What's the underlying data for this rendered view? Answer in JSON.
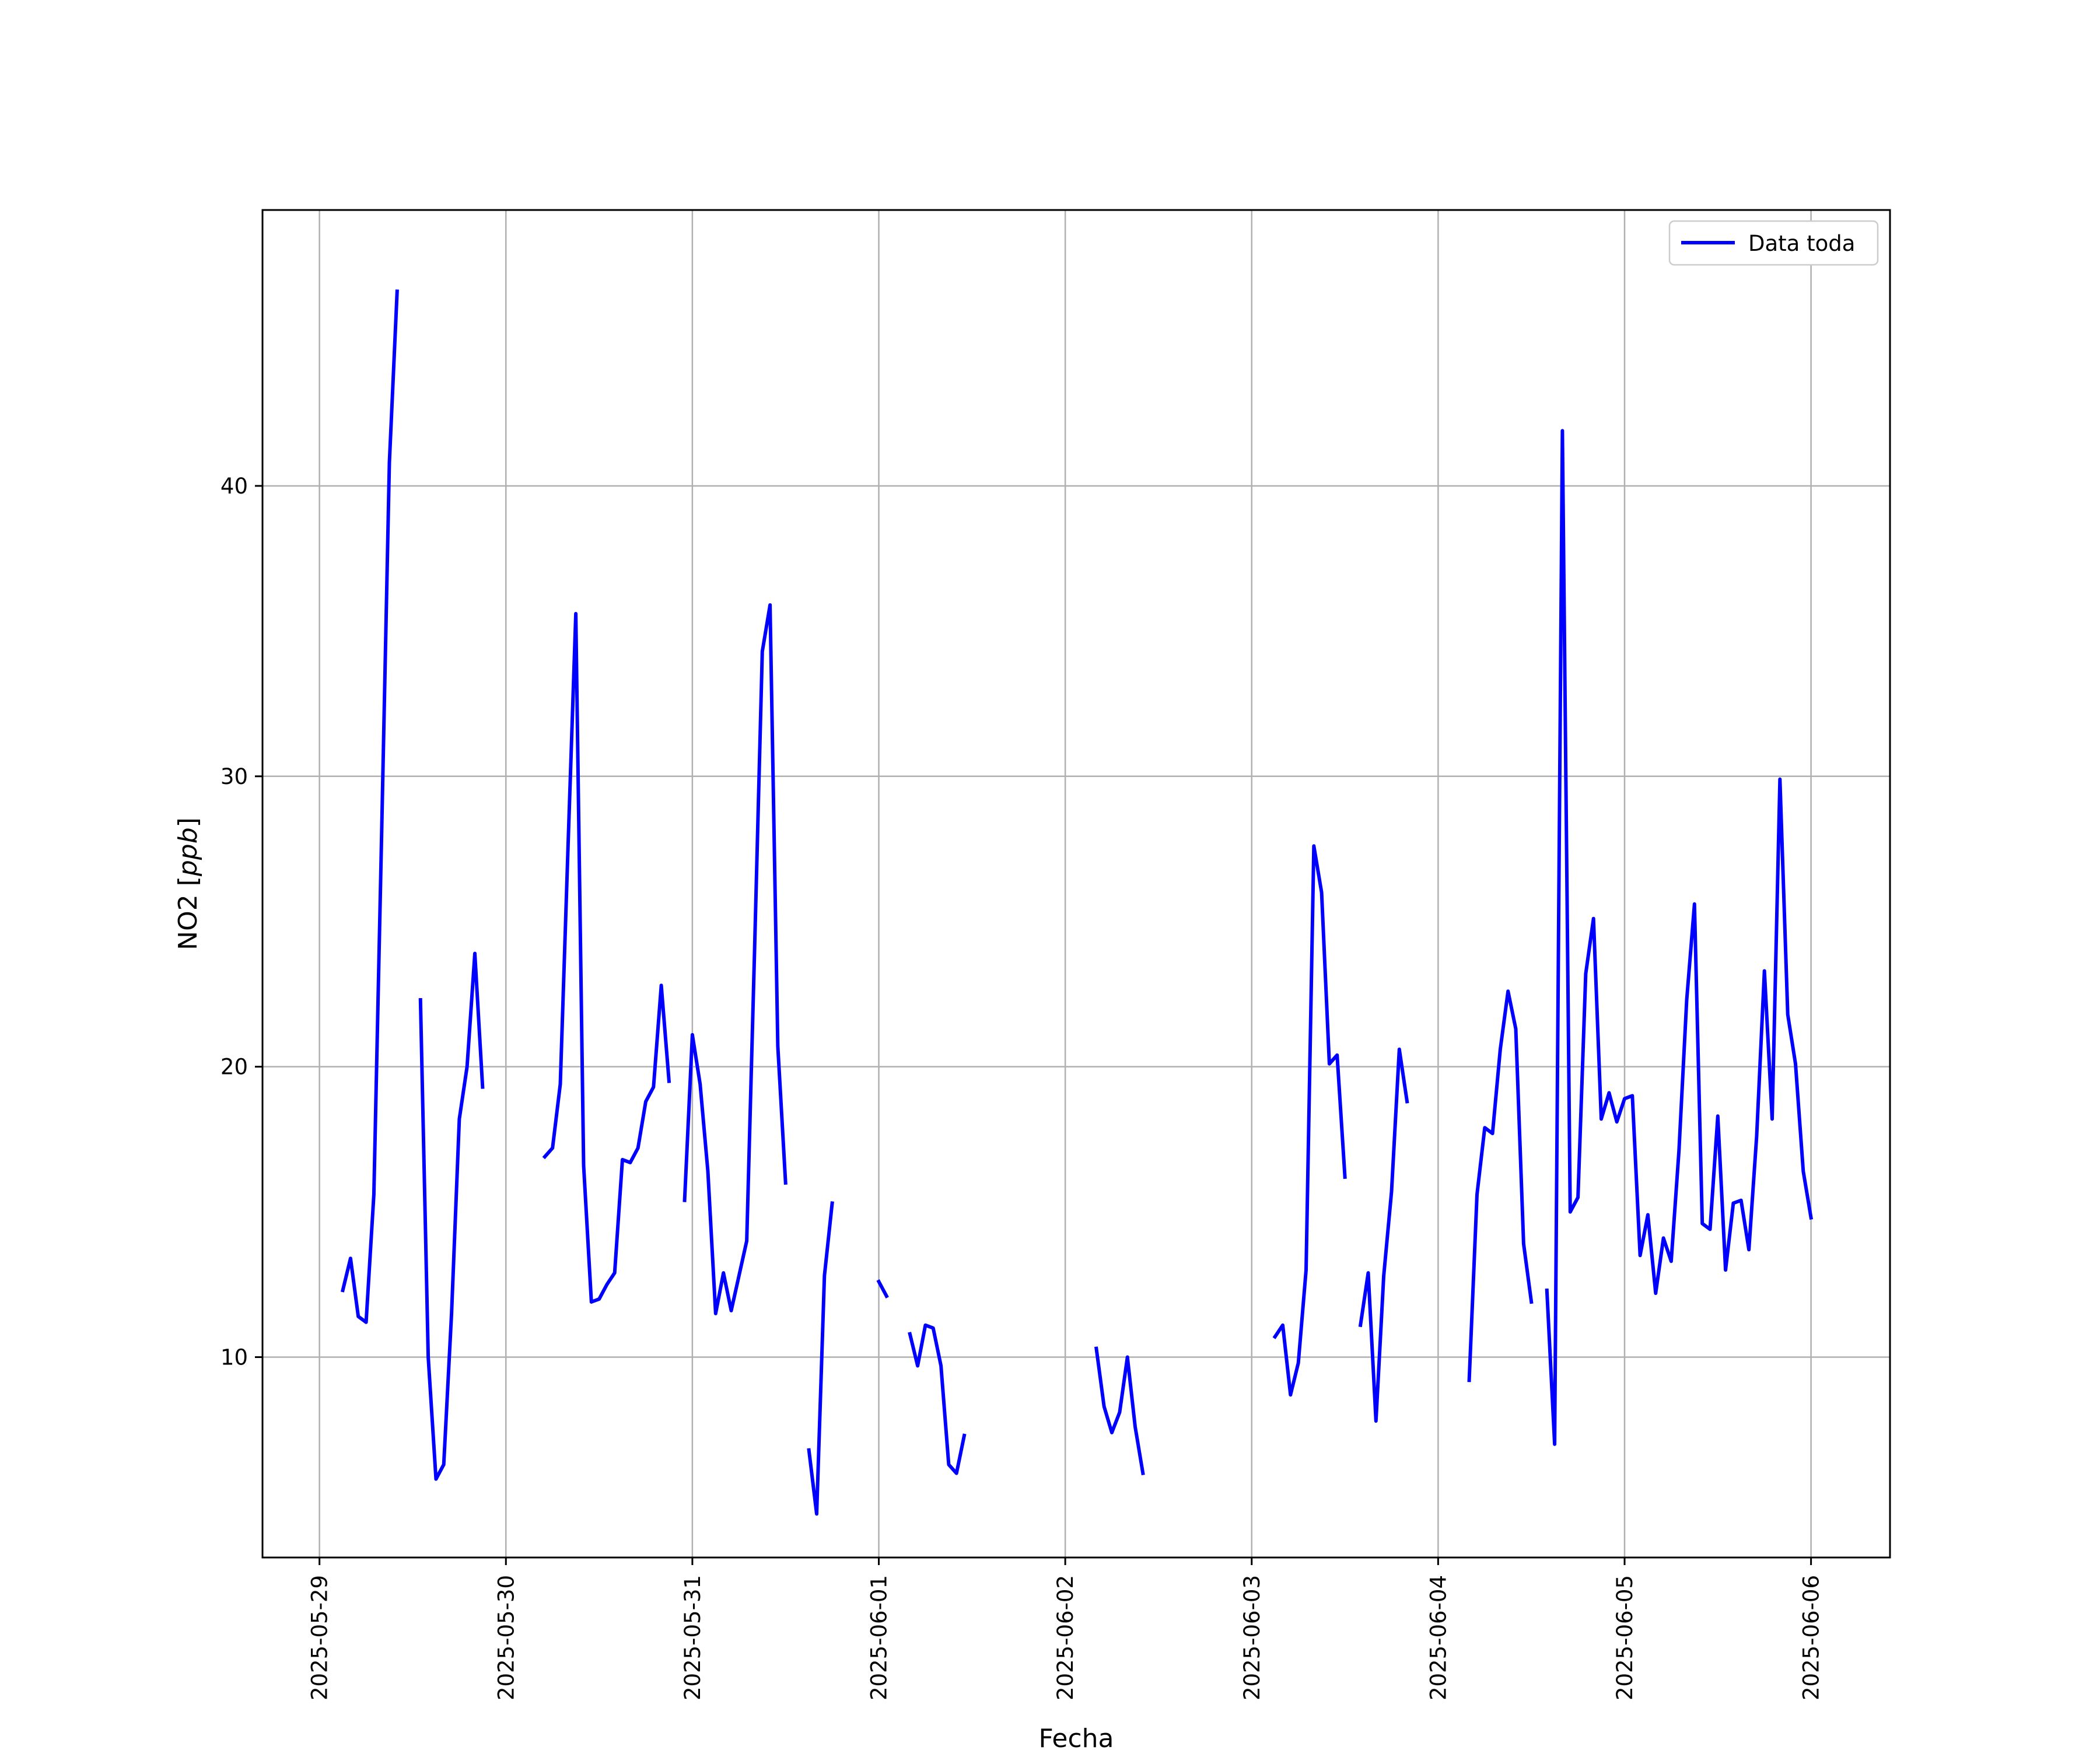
{
  "chart_data": {
    "type": "line",
    "title": "",
    "xlabel": "Fecha",
    "ylabel_main": "NO2 [",
    "ylabel_unit": "ppb",
    "ylabel_close": "]",
    "x_ticks": [
      "2025-05-29",
      "2025-05-30",
      "2025-05-31",
      "2025-06-01",
      "2025-06-02",
      "2025-06-03",
      "2025-06-04",
      "2025-06-05",
      "2025-06-06"
    ],
    "y_ticks": [
      10,
      20,
      30,
      40
    ],
    "xlim": [
      "2025-05-28T16:40",
      "2025-06-06T10:10"
    ],
    "ylim": [
      3.1,
      49.5
    ],
    "grid": true,
    "legend_position": "upper right",
    "series": [
      {
        "name": "Data toda",
        "color": "#0000ff",
        "segments": [
          [
            [
              "2025-05-29T03:00",
              12.3
            ],
            [
              "2025-05-29T04:00",
              13.4
            ],
            [
              "2025-05-29T05:00",
              11.4
            ],
            [
              "2025-05-29T06:00",
              11.2
            ],
            [
              "2025-05-29T07:00",
              15.6
            ],
            [
              "2025-05-29T08:00",
              28.0
            ],
            [
              "2025-05-29T09:00",
              40.8
            ],
            [
              "2025-05-29T10:00",
              46.7
            ]
          ],
          [
            [
              "2025-05-29T13:00",
              22.3
            ],
            [
              "2025-05-29T14:00",
              10.0
            ],
            [
              "2025-05-29T15:00",
              5.8
            ],
            [
              "2025-05-29T16:00",
              6.3
            ],
            [
              "2025-05-29T17:00",
              11.5
            ],
            [
              "2025-05-29T18:00",
              18.2
            ],
            [
              "2025-05-29T19:00",
              20.0
            ],
            [
              "2025-05-29T20:00",
              23.9
            ],
            [
              "2025-05-29T21:00",
              19.3
            ]
          ],
          [
            [
              "2025-05-30T05:00",
              16.9
            ],
            [
              "2025-05-30T06:00",
              17.2
            ],
            [
              "2025-05-30T07:00",
              19.4
            ],
            [
              "2025-05-30T08:00",
              27.6
            ],
            [
              "2025-05-30T09:00",
              35.6
            ],
            [
              "2025-05-30T10:00",
              16.6
            ],
            [
              "2025-05-30T11:00",
              11.9
            ],
            [
              "2025-05-30T12:00",
              12.0
            ],
            [
              "2025-05-30T13:00",
              12.5
            ],
            [
              "2025-05-30T14:00",
              12.9
            ],
            [
              "2025-05-30T15:00",
              16.8
            ],
            [
              "2025-05-30T16:00",
              16.7
            ],
            [
              "2025-05-30T17:00",
              17.2
            ],
            [
              "2025-05-30T18:00",
              18.8
            ],
            [
              "2025-05-30T19:00",
              19.3
            ],
            [
              "2025-05-30T20:00",
              22.8
            ],
            [
              "2025-05-30T21:00",
              19.5
            ]
          ],
          [
            [
              "2025-05-30T23:00",
              15.4
            ],
            [
              "2025-05-31T00:00",
              21.1
            ],
            [
              "2025-05-31T01:00",
              19.4
            ],
            [
              "2025-05-31T02:00",
              16.4
            ],
            [
              "2025-05-31T03:00",
              11.5
            ],
            [
              "2025-05-31T04:00",
              12.9
            ],
            [
              "2025-05-31T05:00",
              11.6
            ],
            [
              "2025-05-31T06:00",
              12.8
            ],
            [
              "2025-05-31T07:00",
              14.0
            ],
            [
              "2025-05-31T08:00",
              23.9
            ],
            [
              "2025-05-31T09:00",
              34.3
            ],
            [
              "2025-05-31T10:00",
              35.9
            ],
            [
              "2025-05-31T11:00",
              20.7
            ],
            [
              "2025-05-31T12:00",
              16.0
            ]
          ],
          [
            [
              "2025-05-31T15:00",
              6.8
            ],
            [
              "2025-05-31T16:00",
              4.6
            ],
            [
              "2025-05-31T17:00",
              12.8
            ],
            [
              "2025-05-31T18:00",
              15.3
            ]
          ],
          [
            [
              "2025-06-01T00:00",
              12.6
            ],
            [
              "2025-06-01T01:00",
              12.1
            ]
          ],
          [
            [
              "2025-06-01T04:00",
              10.8
            ],
            [
              "2025-06-01T05:00",
              9.7
            ],
            [
              "2025-06-01T06:00",
              11.1
            ],
            [
              "2025-06-01T07:00",
              11.0
            ],
            [
              "2025-06-01T08:00",
              9.7
            ],
            [
              "2025-06-01T09:00",
              6.3
            ],
            [
              "2025-06-01T10:00",
              6.0
            ],
            [
              "2025-06-01T11:00",
              7.3
            ]
          ],
          [
            [
              "2025-06-02T04:00",
              10.3
            ],
            [
              "2025-06-02T05:00",
              8.3
            ],
            [
              "2025-06-02T06:00",
              7.4
            ],
            [
              "2025-06-02T07:00",
              8.1
            ],
            [
              "2025-06-02T08:00",
              10.0
            ],
            [
              "2025-06-02T09:00",
              7.6
            ],
            [
              "2025-06-02T10:00",
              6.0
            ]
          ],
          [
            [
              "2025-06-03T03:00",
              10.7
            ],
            [
              "2025-06-03T04:00",
              11.1
            ],
            [
              "2025-06-03T05:00",
              8.7
            ],
            [
              "2025-06-03T06:00",
              9.8
            ],
            [
              "2025-06-03T07:00",
              13.0
            ],
            [
              "2025-06-03T08:00",
              27.6
            ],
            [
              "2025-06-03T09:00",
              26.0
            ],
            [
              "2025-06-03T10:00",
              20.1
            ],
            [
              "2025-06-03T11:00",
              20.4
            ],
            [
              "2025-06-03T12:00",
              16.2
            ]
          ],
          [
            [
              "2025-06-03T14:00",
              11.1
            ],
            [
              "2025-06-03T15:00",
              12.9
            ],
            [
              "2025-06-03T16:00",
              7.8
            ],
            [
              "2025-06-03T17:00",
              12.8
            ],
            [
              "2025-06-03T18:00",
              15.7
            ],
            [
              "2025-06-03T19:00",
              20.6
            ],
            [
              "2025-06-03T20:00",
              18.8
            ]
          ],
          [
            [
              "2025-06-04T04:00",
              9.2
            ],
            [
              "2025-06-04T05:00",
              15.6
            ],
            [
              "2025-06-04T06:00",
              17.9
            ],
            [
              "2025-06-04T07:00",
              17.7
            ],
            [
              "2025-06-04T08:00",
              20.6
            ],
            [
              "2025-06-04T09:00",
              22.6
            ],
            [
              "2025-06-04T10:00",
              21.3
            ],
            [
              "2025-06-04T11:00",
              13.9
            ],
            [
              "2025-06-04T12:00",
              11.9
            ]
          ],
          [
            [
              "2025-06-04T14:00",
              12.3
            ],
            [
              "2025-06-04T15:00",
              7.0
            ],
            [
              "2025-06-04T16:00",
              41.9
            ],
            [
              "2025-06-04T17:00",
              15.0
            ],
            [
              "2025-06-04T18:00",
              15.5
            ],
            [
              "2025-06-04T19:00",
              23.2
            ],
            [
              "2025-06-04T20:00",
              25.1
            ],
            [
              "2025-06-04T21:00",
              18.2
            ],
            [
              "2025-06-04T22:00",
              19.1
            ],
            [
              "2025-06-04T23:00",
              18.1
            ],
            [
              "2025-06-05T00:00",
              18.9
            ],
            [
              "2025-06-05T01:00",
              19.0
            ],
            [
              "2025-06-05T02:00",
              13.5
            ],
            [
              "2025-06-05T03:00",
              14.9
            ],
            [
              "2025-06-05T04:00",
              12.2
            ],
            [
              "2025-06-05T05:00",
              14.1
            ],
            [
              "2025-06-05T06:00",
              13.3
            ],
            [
              "2025-06-05T07:00",
              17.1
            ],
            [
              "2025-06-05T08:00",
              22.3
            ],
            [
              "2025-06-05T09:00",
              25.6
            ],
            [
              "2025-06-05T10:00",
              14.6
            ],
            [
              "2025-06-05T11:00",
              14.4
            ],
            [
              "2025-06-05T12:00",
              18.3
            ],
            [
              "2025-06-05T13:00",
              13.0
            ],
            [
              "2025-06-05T14:00",
              15.3
            ],
            [
              "2025-06-05T15:00",
              15.4
            ],
            [
              "2025-06-05T16:00",
              13.7
            ],
            [
              "2025-06-05T17:00",
              17.6
            ],
            [
              "2025-06-05T18:00",
              23.3
            ],
            [
              "2025-06-05T19:00",
              18.2
            ],
            [
              "2025-06-05T20:00",
              29.9
            ],
            [
              "2025-06-05T21:00",
              21.8
            ],
            [
              "2025-06-05T22:00",
              20.1
            ],
            [
              "2025-06-05T23:00",
              16.4
            ],
            [
              "2025-06-06T00:00",
              14.8
            ]
          ]
        ]
      }
    ]
  }
}
